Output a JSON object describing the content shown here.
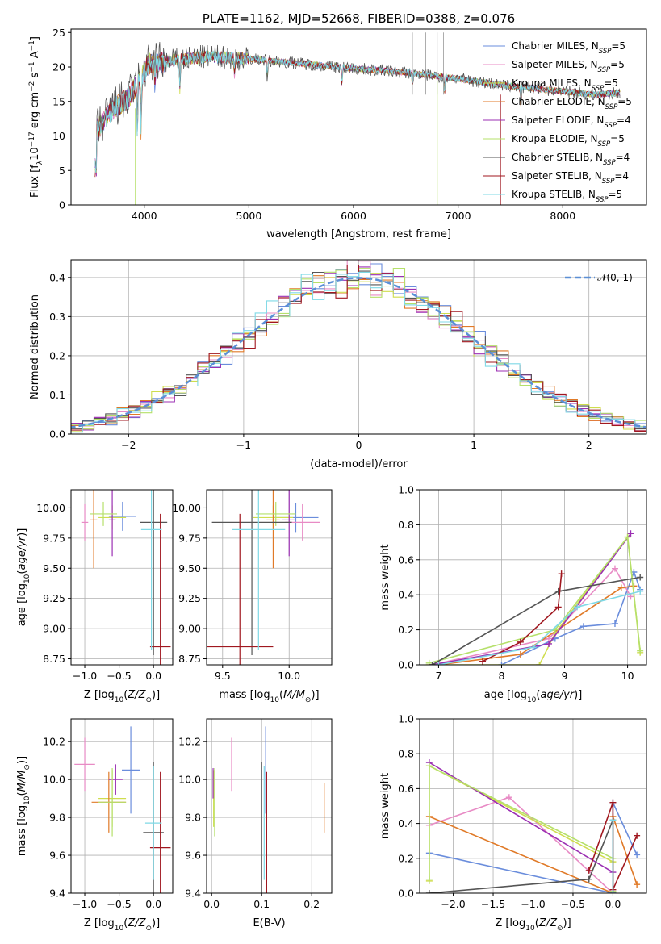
{
  "colors": {
    "Chabrier MILES": "#6a8ddc",
    "Salpeter MILES": "#e88bc5",
    "Kroupa MILES": "#cfdd4e",
    "Chabrier ELODIE": "#e07a28",
    "Salpeter ELODIE": "#9b2fb3",
    "Kroupa ELODIE": "#b5e06a",
    "Chabrier STELIB": "#555555",
    "Salpeter STELIB": "#a0171f",
    "Kroupa STELIB": "#7fd9e6",
    "gauss": "#5b8fd6",
    "grid": "#b0b0b0"
  },
  "chart_data": [
    {
      "id": "spectrum",
      "type": "line",
      "title": "PLATE=1162, MJD=52668, FIBERID=0388, z=0.076",
      "xlabel": "wavelength [Angstrom, rest frame]",
      "ylabel_parts": [
        "Flux [f",
        "λ",
        "10",
        "−17",
        " erg cm",
        "−2",
        " s",
        "−1",
        " A",
        "−1",
        "]"
      ],
      "xlim": [
        3300,
        8800
      ],
      "ylim": [
        0,
        25.5
      ],
      "xticks": [
        4000,
        5000,
        6000,
        7000,
        8000
      ],
      "yticks": [
        0,
        5,
        10,
        15,
        20,
        25
      ],
      "grid": false,
      "legend_position": "top-right",
      "series": [
        {
          "name": "Chabrier MILES, N",
          "sub": "SSP",
          "tail": "=5",
          "key": "Chabrier MILES"
        },
        {
          "name": "Salpeter MILES, N",
          "sub": "SSP",
          "tail": "=5",
          "key": "Salpeter MILES"
        },
        {
          "name": "Kroupa MILES, N",
          "sub": "SSP",
          "tail": "=5",
          "key": "Kroupa MILES"
        },
        {
          "name": "Chabrier ELODIE, N",
          "sub": "SSP",
          "tail": "=5",
          "key": "Chabrier ELODIE"
        },
        {
          "name": "Salpeter ELODIE, N",
          "sub": "SSP",
          "tail": "=4",
          "key": "Salpeter ELODIE"
        },
        {
          "name": "Kroupa ELODIE, N",
          "sub": "SSP",
          "tail": "=5",
          "key": "Kroupa ELODIE"
        },
        {
          "name": "Chabrier STELIB, N",
          "sub": "SSP",
          "tail": "=4",
          "key": "Chabrier STELIB"
        },
        {
          "name": "Salpeter STELIB, N",
          "sub": "SSP",
          "tail": "=4",
          "key": "Salpeter STELIB"
        },
        {
          "name": "Kroupa STELIB, N",
          "sub": "SSP",
          "tail": "=5",
          "key": "Kroupa STELIB"
        }
      ],
      "continuum": [
        [
          3530,
          10.5
        ],
        [
          3700,
          14
        ],
        [
          3850,
          15.5
        ],
        [
          3950,
          18
        ],
        [
          4050,
          20.5
        ],
        [
          4300,
          21
        ],
        [
          4600,
          21.5
        ],
        [
          5000,
          21.2
        ],
        [
          5500,
          20.5
        ],
        [
          6000,
          19.8
        ],
        [
          6500,
          19.2
        ],
        [
          7000,
          18.3
        ],
        [
          7500,
          17.2
        ],
        [
          8000,
          16.5
        ],
        [
          8300,
          16
        ],
        [
          8500,
          16.2
        ]
      ],
      "dips": [
        [
          3934,
          8
        ],
        [
          3969,
          9
        ],
        [
          4102,
          4
        ],
        [
          4340,
          5
        ],
        [
          4861,
          3
        ],
        [
          5175,
          3
        ],
        [
          5890,
          3
        ],
        [
          6563,
          2
        ],
        [
          6870,
          3
        ],
        [
          7600,
          3
        ]
      ],
      "spikes": [
        [
          6563,
          25
        ],
        [
          6690,
          25
        ],
        [
          6800,
          25
        ],
        [
          6860,
          25
        ]
      ]
    },
    {
      "id": "residuals",
      "type": "line",
      "xlabel": "(data-model)/error",
      "ylabel": "Normed distribution",
      "xlim": [
        -2.5,
        2.5
      ],
      "ylim": [
        0,
        0.445
      ],
      "xticks": [
        -2,
        -1,
        0,
        1,
        2
      ],
      "yticks": [
        0.0,
        0.1,
        0.2,
        0.3,
        0.4
      ],
      "grid": true,
      "legend_position": "top-right",
      "legend": "𝒩(0, 1)",
      "bin_width": 0.1
    },
    {
      "id": "age-vs-Z",
      "type": "scatter",
      "xlabel": "Z [log10(Z/Z⊙)]",
      "ylabel": "age  [log10(age/yr)]",
      "xlim": [
        -1.2,
        0.28
      ],
      "ylim": [
        8.7,
        10.15
      ],
      "xticks": [
        -1.0,
        -0.5,
        0.0
      ],
      "yticks": [
        8.75,
        9.0,
        9.25,
        9.5,
        9.75,
        10.0
      ],
      "grid": true,
      "points": [
        {
          "key": "Chabrier MILES",
          "x": -0.45,
          "y": 9.93,
          "xerr": 0.2,
          "yerr": 0.12
        },
        {
          "key": "Salpeter MILES",
          "x": -1.0,
          "y": 9.88,
          "xerr": 0.05,
          "yerr": 0.15
        },
        {
          "key": "Kroupa MILES",
          "x": -0.6,
          "y": 9.92,
          "xerr": 0.2,
          "yerr": 0.1
        },
        {
          "key": "Chabrier ELODIE",
          "x": -0.87,
          "y": 9.9,
          "xerr": 0.05,
          "yerr": 0.4
        },
        {
          "key": "Salpeter ELODIE",
          "x": -0.6,
          "y": 9.9,
          "xerr": 0.05,
          "yerr": 0.3
        },
        {
          "key": "Kroupa ELODIE",
          "x": -0.73,
          "y": 9.95,
          "xerr": 0.2,
          "yerr": 0.1
        },
        {
          "key": "Chabrier STELIB",
          "x": 0.0,
          "y": 9.88,
          "xerr": 0.2,
          "yerr": 1.1
        },
        {
          "key": "Salpeter STELIB",
          "x": 0.1,
          "y": 8.85,
          "xerr": 0.15,
          "yerr": 1.1
        },
        {
          "key": "Kroupa STELIB",
          "x": -0.03,
          "y": 9.82,
          "xerr": 0.15,
          "yerr": 1.0
        }
      ]
    },
    {
      "id": "age-vs-mass",
      "type": "scatter",
      "xlabel": "mass [log10(M/M⊙)]",
      "xlim": [
        9.38,
        10.32
      ],
      "ylim": [
        8.7,
        10.15
      ],
      "xticks": [
        9.5,
        10.0
      ],
      "yticks": [
        8.75,
        9.0,
        9.25,
        9.5,
        9.75,
        10.0
      ],
      "grid": true,
      "points": [
        {
          "key": "Chabrier MILES",
          "x": 10.05,
          "y": 9.92,
          "xerr": 0.17,
          "yerr": 0.12
        },
        {
          "key": "Salpeter MILES",
          "x": 10.1,
          "y": 9.88,
          "xerr": 0.13,
          "yerr": 0.15
        },
        {
          "key": "Kroupa MILES",
          "x": 9.88,
          "y": 9.92,
          "xerr": 0.15,
          "yerr": 0.1
        },
        {
          "key": "Chabrier ELODIE",
          "x": 9.88,
          "y": 9.9,
          "xerr": 0.05,
          "yerr": 0.4
        },
        {
          "key": "Salpeter ELODIE",
          "x": 10.0,
          "y": 9.9,
          "xerr": 0.05,
          "yerr": 0.3
        },
        {
          "key": "Kroupa ELODIE",
          "x": 9.9,
          "y": 9.95,
          "xerr": 0.15,
          "yerr": 0.1
        },
        {
          "key": "Chabrier STELIB",
          "x": 9.72,
          "y": 9.88,
          "xerr": 0.3,
          "yerr": 1.1
        },
        {
          "key": "Salpeter STELIB",
          "x": 9.63,
          "y": 8.85,
          "xerr": 0.25,
          "yerr": 1.1
        },
        {
          "key": "Kroupa STELIB",
          "x": 9.77,
          "y": 9.82,
          "xerr": 0.2,
          "yerr": 1.0
        }
      ]
    },
    {
      "id": "mass-weight-vs-age",
      "type": "line",
      "xlabel": "age  [log10(age/yr)]",
      "ylabel": "mass weight",
      "xlim": [
        6.7,
        10.3
      ],
      "ylim": [
        0,
        1
      ],
      "xticks": [
        7,
        8,
        9,
        10
      ],
      "yticks": [
        0.0,
        0.2,
        0.4,
        0.6,
        0.8,
        1.0
      ],
      "grid": true,
      "series": [
        {
          "key": "Chabrier MILES",
          "x": [
            8.0,
            8.85,
            9.3,
            9.8,
            10.1,
            10.2
          ],
          "y": [
            0.0,
            0.15,
            0.22,
            0.235,
            0.53,
            0.43
          ]
        },
        {
          "key": "Salpeter MILES",
          "x": [
            6.9,
            8.75,
            9.8,
            10.05
          ],
          "y": [
            0.0,
            0.15,
            0.55,
            0.39
          ]
        },
        {
          "key": "Kroupa MILES",
          "x": [
            6.85,
            8.6,
            8.85,
            10.0,
            10.2
          ],
          "y": [
            0.0,
            0.0,
            0.18,
            0.73,
            0.07
          ]
        },
        {
          "key": "Chabrier ELODIE",
          "x": [
            7.0,
            8.3,
            9.9,
            10.1
          ],
          "y": [
            0.0,
            0.06,
            0.44,
            0.45
          ]
        },
        {
          "key": "Salpeter ELODIE",
          "x": [
            6.9,
            8.75,
            10.05
          ],
          "y": [
            0.0,
            0.12,
            0.75
          ]
        },
        {
          "key": "Kroupa ELODIE",
          "x": [
            6.85,
            8.85,
            10.0,
            10.2
          ],
          "y": [
            0.01,
            0.2,
            0.73,
            0.08
          ]
        },
        {
          "key": "Chabrier STELIB",
          "x": [
            6.9,
            8.9,
            10.2
          ],
          "y": [
            0.0,
            0.42,
            0.5
          ]
        },
        {
          "key": "Salpeter STELIB",
          "x": [
            7.7,
            8.3,
            8.9,
            8.95
          ],
          "y": [
            0.02,
            0.13,
            0.33,
            0.52
          ]
        },
        {
          "key": "Kroupa STELIB",
          "x": [
            7.0,
            8.5,
            9.2,
            10.2
          ],
          "y": [
            0.0,
            0.1,
            0.33,
            0.42
          ]
        }
      ]
    },
    {
      "id": "mass-vs-Z",
      "type": "scatter",
      "xlabel": "Z [log10(Z/Z⊙)]",
      "ylabel": "mass [log10(M/M⊙)]",
      "xlim": [
        -1.2,
        0.28
      ],
      "ylim": [
        9.4,
        10.32
      ],
      "xticks": [
        -1.0,
        -0.5,
        0.0
      ],
      "yticks": [
        9.4,
        9.6,
        9.8,
        10.0,
        10.2
      ],
      "grid": true,
      "points": [
        {
          "key": "Chabrier MILES",
          "x": -0.33,
          "y": 10.05,
          "xerr": 0.13,
          "yerr": 0.23
        },
        {
          "key": "Salpeter MILES",
          "x": -1.0,
          "y": 10.08,
          "xerr": 0.15,
          "yerr": 0.14
        },
        {
          "key": "Kroupa MILES",
          "x": -0.6,
          "y": 9.9,
          "xerr": 0.2,
          "yerr": 0.15
        },
        {
          "key": "Chabrier ELODIE",
          "x": -0.65,
          "y": 9.88,
          "xerr": 0.25,
          "yerr": 0.16
        },
        {
          "key": "Salpeter ELODIE",
          "x": -0.55,
          "y": 10.0,
          "xerr": 0.1,
          "yerr": 0.08
        },
        {
          "key": "Kroupa ELODIE",
          "x": -0.6,
          "y": 9.88,
          "xerr": 0.2,
          "yerr": 0.18
        },
        {
          "key": "Chabrier STELIB",
          "x": 0.0,
          "y": 9.72,
          "xerr": 0.15,
          "yerr": 0.37
        },
        {
          "key": "Salpeter STELIB",
          "x": 0.1,
          "y": 9.64,
          "xerr": 0.15,
          "yerr": 0.4
        },
        {
          "key": "Kroupa STELIB",
          "x": 0.0,
          "y": 9.77,
          "xerr": 0.12,
          "yerr": 0.3
        }
      ]
    },
    {
      "id": "mass-vs-EBV",
      "type": "scatter",
      "xlabel": "E(B-V)",
      "xlim": [
        -0.01,
        0.24
      ],
      "ylim": [
        9.4,
        10.32
      ],
      "xticks": [
        0.0,
        0.1,
        0.2
      ],
      "yticks": [
        9.4,
        9.6,
        9.8,
        10.0,
        10.2
      ],
      "grid": true,
      "points": [
        {
          "key": "Chabrier MILES",
          "x": 0.108,
          "y": 10.05,
          "xerr": 0.0,
          "yerr": 0.23
        },
        {
          "key": "Salpeter MILES",
          "x": 0.04,
          "y": 10.08,
          "xerr": 0.0,
          "yerr": 0.14
        },
        {
          "key": "Kroupa MILES",
          "x": 0.004,
          "y": 9.9,
          "xerr": 0.0,
          "yerr": 0.15
        },
        {
          "key": "Chabrier ELODIE",
          "x": 0.225,
          "y": 9.85,
          "xerr": 0.0,
          "yerr": 0.13
        },
        {
          "key": "Salpeter ELODIE",
          "x": 0.003,
          "y": 9.98,
          "xerr": 0.0,
          "yerr": 0.08
        },
        {
          "key": "Kroupa ELODIE",
          "x": 0.006,
          "y": 9.88,
          "xerr": 0.0,
          "yerr": 0.18
        },
        {
          "key": "Chabrier STELIB",
          "x": 0.1,
          "y": 9.72,
          "xerr": 0.0,
          "yerr": 0.37
        },
        {
          "key": "Salpeter STELIB",
          "x": 0.11,
          "y": 9.64,
          "xerr": 0.0,
          "yerr": 0.4
        },
        {
          "key": "Kroupa STELIB",
          "x": 0.105,
          "y": 9.77,
          "xerr": 0.0,
          "yerr": 0.3
        }
      ]
    },
    {
      "id": "mass-weight-vs-Z",
      "type": "line",
      "xlabel": "Z [log10(Z/Z⊙)]",
      "ylabel": "mass weight",
      "xlim": [
        -2.42,
        0.42
      ],
      "ylim": [
        0,
        1
      ],
      "xticks": [
        -2.0,
        -1.5,
        -1.0,
        -0.5,
        0.0
      ],
      "yticks": [
        0.0,
        0.2,
        0.4,
        0.6,
        0.8,
        1.0
      ],
      "grid": true,
      "series": [
        {
          "key": "Chabrier MILES",
          "x": [
            -2.3,
            0.0,
            0.0,
            0.3
          ],
          "y": [
            0.23,
            0.0,
            0.52,
            0.22
          ]
        },
        {
          "key": "Salpeter MILES",
          "x": [
            -2.3,
            -1.3,
            0.0
          ],
          "y": [
            0.39,
            0.55,
            0.0
          ]
        },
        {
          "key": "Kroupa MILES",
          "x": [
            -2.3,
            -2.3,
            0.0,
            0.0
          ],
          "y": [
            0.07,
            0.73,
            0.18,
            0.0
          ]
        },
        {
          "key": "Chabrier ELODIE",
          "x": [
            -2.3,
            0.0,
            0.0,
            0.3
          ],
          "y": [
            0.44,
            0.0,
            0.44,
            0.05
          ]
        },
        {
          "key": "Salpeter ELODIE",
          "x": [
            -2.3,
            0.0,
            0.0
          ],
          "y": [
            0.75,
            0.12,
            0.0
          ]
        },
        {
          "key": "Kroupa ELODIE",
          "x": [
            -2.3,
            -2.3,
            0.0,
            0.0
          ],
          "y": [
            0.08,
            0.73,
            0.2,
            0.01
          ]
        },
        {
          "key": "Chabrier STELIB",
          "x": [
            -2.3,
            -0.3,
            0.0,
            0.0
          ],
          "y": [
            0.0,
            0.08,
            0.42,
            0.0
          ]
        },
        {
          "key": "Salpeter STELIB",
          "x": [
            -0.3,
            0.0,
            0.0,
            0.3
          ],
          "y": [
            0.13,
            0.52,
            0.02,
            0.33
          ]
        },
        {
          "key": "Kroupa STELIB",
          "x": [
            0.0,
            0.0
          ],
          "y": [
            0.42,
            0.0
          ]
        }
      ]
    }
  ]
}
